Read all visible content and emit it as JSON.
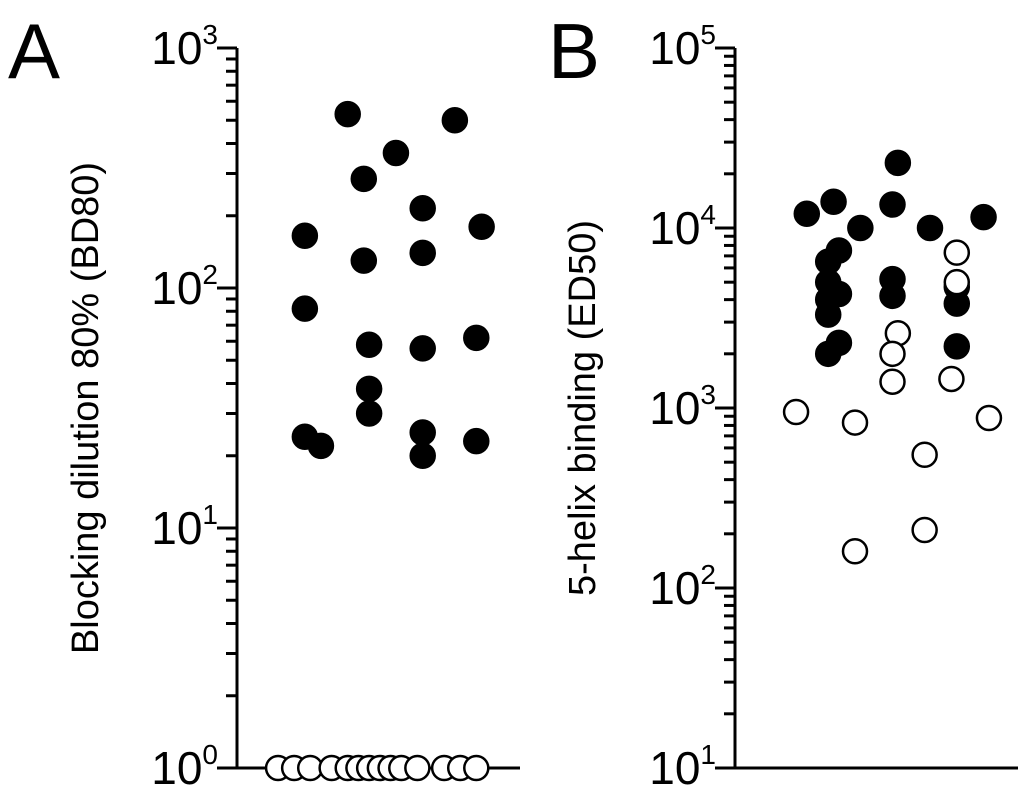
{
  "chart_data": [
    {
      "type": "scatter",
      "panel": "A",
      "ylabel": "Blocking dilution 80% (BD80)",
      "xlabel": "",
      "yscale": "log",
      "ylim": [
        1,
        1000
      ],
      "yticks": [
        {
          "base": "10",
          "exp": "0"
        },
        {
          "base": "10",
          "exp": "1"
        },
        {
          "base": "10",
          "exp": "2"
        },
        {
          "base": "10",
          "exp": "3"
        }
      ],
      "series": [
        {
          "marker": "filled-circle",
          "points": [
            {
              "x": 0.08,
              "y": 24
            },
            {
              "x": 0.11,
              "y": 22
            },
            {
              "x": 0.2,
              "y": 30
            },
            {
              "x": 0.2,
              "y": 38
            },
            {
              "x": 0.2,
              "y": 58
            },
            {
              "x": 0.3,
              "y": 25
            },
            {
              "x": 0.3,
              "y": 20
            },
            {
              "x": 0.3,
              "y": 56
            },
            {
              "x": 0.4,
              "y": 23
            },
            {
              "x": 0.4,
              "y": 62
            },
            {
              "x": 0.08,
              "y": 82
            },
            {
              "x": 0.08,
              "y": 165
            },
            {
              "x": 0.19,
              "y": 130
            },
            {
              "x": 0.3,
              "y": 140
            },
            {
              "x": 0.41,
              "y": 180
            },
            {
              "x": 0.3,
              "y": 215
            },
            {
              "x": 0.19,
              "y": 285
            },
            {
              "x": 0.25,
              "y": 365
            },
            {
              "x": 0.16,
              "y": 530
            },
            {
              "x": 0.36,
              "y": 500
            }
          ]
        },
        {
          "marker": "open-circle",
          "points": [
            {
              "x": 0.03,
              "y": 1
            },
            {
              "x": 0.06,
              "y": 1
            },
            {
              "x": 0.09,
              "y": 1
            },
            {
              "x": 0.13,
              "y": 1
            },
            {
              "x": 0.16,
              "y": 1
            },
            {
              "x": 0.18,
              "y": 1
            },
            {
              "x": 0.2,
              "y": 1
            },
            {
              "x": 0.22,
              "y": 1
            },
            {
              "x": 0.24,
              "y": 1
            },
            {
              "x": 0.26,
              "y": 1
            },
            {
              "x": 0.29,
              "y": 1
            },
            {
              "x": 0.34,
              "y": 1
            },
            {
              "x": 0.37,
              "y": 1
            },
            {
              "x": 0.4,
              "y": 1
            }
          ]
        }
      ]
    },
    {
      "type": "scatter",
      "panel": "B",
      "ylabel": "5-helix binding (ED50)",
      "xlabel": "",
      "yscale": "log",
      "ylim": [
        10,
        100000
      ],
      "yticks": [
        {
          "base": "10",
          "exp": "1"
        },
        {
          "base": "10",
          "exp": "2"
        },
        {
          "base": "10",
          "exp": "3"
        },
        {
          "base": "10",
          "exp": "4"
        },
        {
          "base": "10",
          "exp": "5"
        }
      ],
      "series": [
        {
          "marker": "filled-circle",
          "points": [
            {
              "x": 0.05,
              "y": 12000
            },
            {
              "x": 0.1,
              "y": 14000
            },
            {
              "x": 0.15,
              "y": 10000
            },
            {
              "x": 0.11,
              "y": 7500
            },
            {
              "x": 0.09,
              "y": 6500
            },
            {
              "x": 0.09,
              "y": 5000
            },
            {
              "x": 0.09,
              "y": 4000
            },
            {
              "x": 0.09,
              "y": 3300
            },
            {
              "x": 0.11,
              "y": 4300
            },
            {
              "x": 0.11,
              "y": 2300
            },
            {
              "x": 0.09,
              "y": 2000
            },
            {
              "x": 0.22,
              "y": 23000
            },
            {
              "x": 0.21,
              "y": 13500
            },
            {
              "x": 0.28,
              "y": 10000
            },
            {
              "x": 0.21,
              "y": 5200
            },
            {
              "x": 0.21,
              "y": 4200
            },
            {
              "x": 0.33,
              "y": 4700
            },
            {
              "x": 0.33,
              "y": 3800
            },
            {
              "x": 0.33,
              "y": 2200
            },
            {
              "x": 0.38,
              "y": 11500
            }
          ]
        },
        {
          "marker": "open-circle",
          "points": [
            {
              "x": 0.03,
              "y": 950
            },
            {
              "x": 0.14,
              "y": 830
            },
            {
              "x": 0.22,
              "y": 2600
            },
            {
              "x": 0.21,
              "y": 2000
            },
            {
              "x": 0.21,
              "y": 1400
            },
            {
              "x": 0.33,
              "y": 7300
            },
            {
              "x": 0.33,
              "y": 5000
            },
            {
              "x": 0.32,
              "y": 1450
            },
            {
              "x": 0.39,
              "y": 880
            },
            {
              "x": 0.27,
              "y": 550
            },
            {
              "x": 0.27,
              "y": 210
            },
            {
              "x": 0.14,
              "y": 160
            }
          ]
        }
      ]
    }
  ]
}
